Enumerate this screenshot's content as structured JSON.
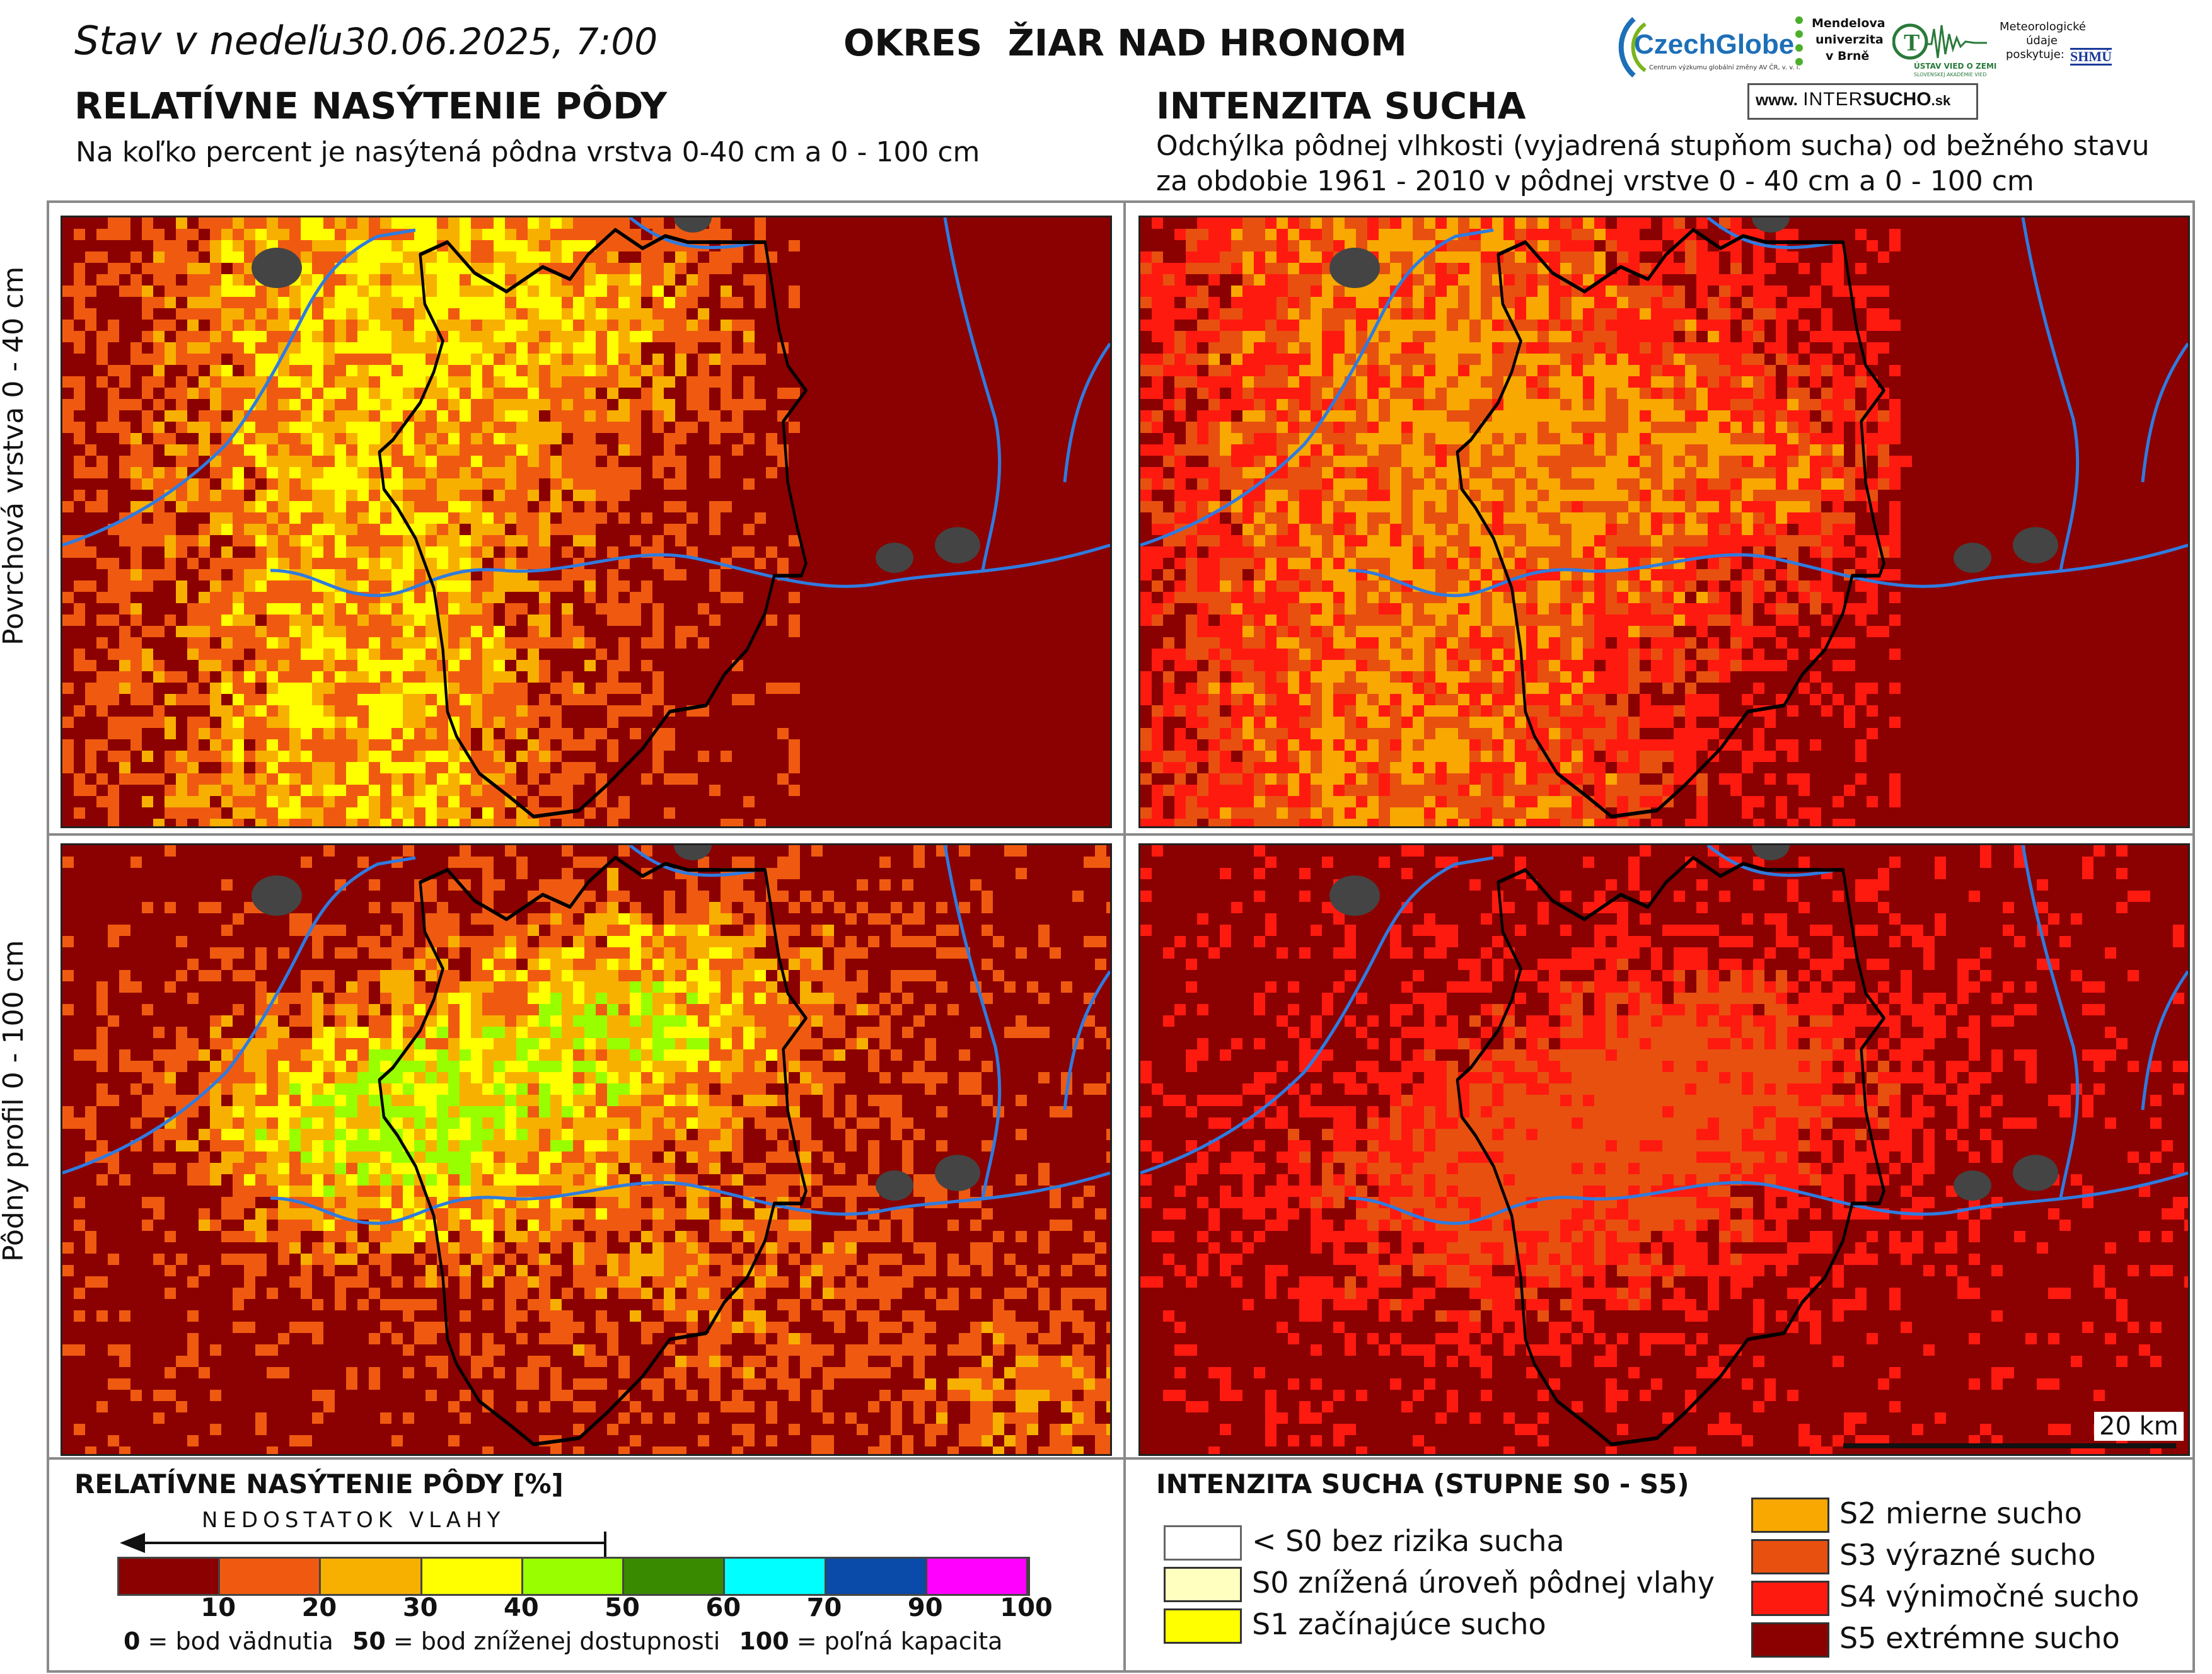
{
  "header": {
    "status_prefix": "Stav v nedeľu",
    "status_datetime": "30.06.2025, 7:00",
    "district": "OKRES  ŽIAR NAD HRONOM"
  },
  "left_section": {
    "title": "RELATÍVNE NASÝTENIE PÔDY",
    "subtitle": "Na koľko percent je nasýtená pôdna vrstva 0-40 cm a 0 - 100 cm"
  },
  "right_section": {
    "title": "INTENZITA SUCHA",
    "subtitle_line1": "Odchýlka pôdnej vlhkosti (vyjadrená stupňom sucha) od bežného stavu",
    "subtitle_line2": "za obdobie 1961 - 2010 v pôdnej vrstve 0 - 40 cm a 0 - 100 cm"
  },
  "row_labels": {
    "top": "Povrchová vrstva 0 - 40 cm",
    "bottom": "Pôdny profil 0 - 100 cm"
  },
  "logos": {
    "czechglobe": "CzechGlobe",
    "czechglobe_sub": "Centrum výzkumu globální změny AV ČR, v. v. i.",
    "mendel_line1": "Mendelova",
    "mendel_line2": "univerzita",
    "mendel_line3": "v Brně",
    "ustav": "ÚSTAV VIED O ZEMI",
    "ustav_sub": "SLOVENSKEJ AKADÉMIE VIED",
    "meteo_line1": "Meteorologické",
    "meteo_line2": "údaje",
    "meteo_line3": "poskytuje:",
    "shmu": "SHMÚ",
    "intersucho_prefix": "www.",
    "intersucho_a": "INTER",
    "intersucho_b": "SUCHO",
    "intersucho_suffix": ".sk"
  },
  "scale_bar": {
    "label": "20 km"
  },
  "legend_saturation": {
    "title": "RELATÍVNE NASÝTENIE PÔDY [%]",
    "arrow_label": "NEDOSTATOK VLAHY",
    "classes": [
      {
        "from": 0,
        "to": 10,
        "color": "#8b0000"
      },
      {
        "from": 10,
        "to": 20,
        "color": "#f05a10"
      },
      {
        "from": 20,
        "to": 30,
        "color": "#f8b000"
      },
      {
        "from": 30,
        "to": 40,
        "color": "#ffff00"
      },
      {
        "from": 40,
        "to": 50,
        "color": "#99ff00"
      },
      {
        "from": 50,
        "to": 60,
        "color": "#3a8a00"
      },
      {
        "from": 60,
        "to": 70,
        "color": "#00ffff"
      },
      {
        "from": 70,
        "to": 90,
        "color": "#0a4aa8"
      },
      {
        "from": 90,
        "to": 100,
        "color": "#ff00ff"
      }
    ],
    "ticks": [
      "10",
      "20",
      "30",
      "40",
      "50",
      "60",
      "70",
      "90",
      "100"
    ],
    "note_0": "0",
    "note_0_text": " = bod vädnutia",
    "note_50": "50",
    "note_50_text": " = bod zníženej dostupnosti",
    "note_100": "100",
    "note_100_text": " = poľná kapacita"
  },
  "legend_drought": {
    "title": "INTENZITA SUCHA (STUPNE S0 - S5)",
    "items": [
      {
        "label": "< S0 bez rizika sucha",
        "color": "#ffffff"
      },
      {
        "label": "S0 znížená úroveň pôdnej vlahy",
        "color": "#ffffc0"
      },
      {
        "label": "S1 začínajúce sucho",
        "color": "#ffff00"
      },
      {
        "label": "S2 mierne sucho",
        "color": "#f8a800"
      },
      {
        "label": "S3 výrazné sucho",
        "color": "#e85010"
      },
      {
        "label": "S4 výnimočné sucho",
        "color": "#ff1a10"
      },
      {
        "label": "S5 extrémne sucho",
        "color": "#8b0000"
      }
    ]
  }
}
